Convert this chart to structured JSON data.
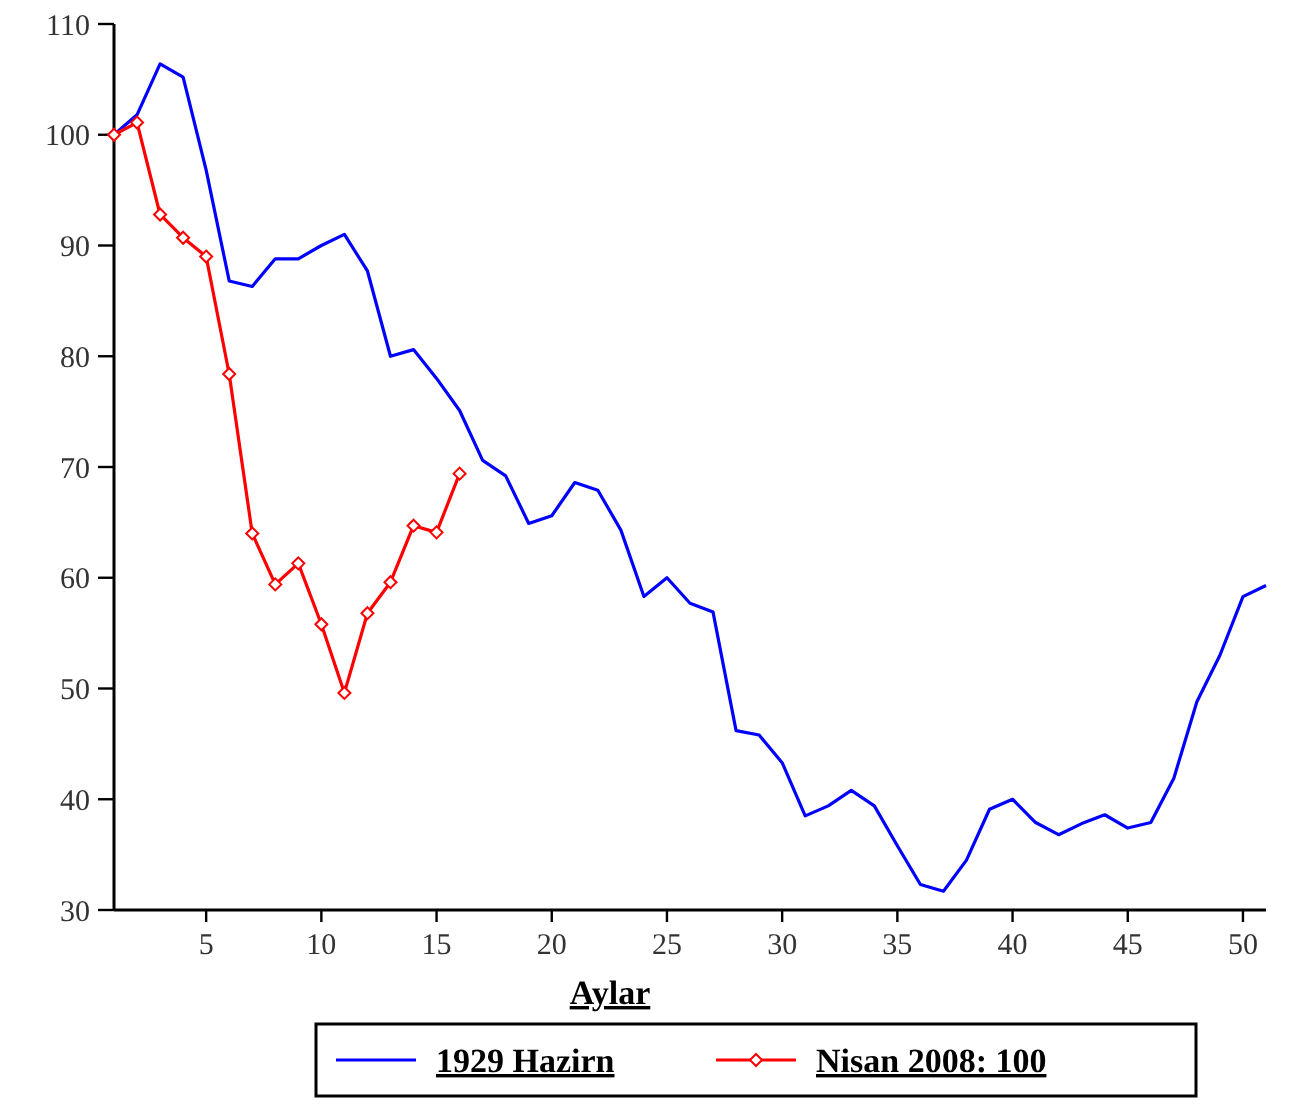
{
  "chart_data": {
    "type": "line",
    "xlabel": "Aylar",
    "x": [
      1,
      2,
      3,
      4,
      5,
      6,
      7,
      8,
      9,
      10,
      11,
      12,
      13,
      14,
      15,
      16,
      17,
      18,
      19,
      20,
      21,
      22,
      23,
      24,
      25,
      26,
      27,
      28,
      29,
      30,
      31,
      32,
      33,
      34,
      35,
      36,
      37,
      38,
      39,
      40,
      41,
      42,
      43,
      44,
      45,
      46,
      47,
      48,
      49,
      50,
      51
    ],
    "xlim": [
      1,
      51
    ],
    "xticks": [
      5,
      10,
      15,
      20,
      25,
      30,
      35,
      40,
      45,
      50
    ],
    "ylim": [
      30,
      110
    ],
    "yticks": [
      30,
      40,
      50,
      60,
      70,
      80,
      90,
      100,
      110
    ],
    "grid": false,
    "legend": "bottom",
    "series": [
      {
        "name": "1929 Hazirn",
        "color": "#0000ff",
        "marker": "none",
        "values": [
          100,
          101.8,
          106.4,
          105.2,
          96.8,
          86.8,
          86.3,
          88.8,
          88.8,
          90,
          91,
          87.7,
          80,
          80.6,
          78,
          75.1,
          70.6,
          69.2,
          64.9,
          65.6,
          68.6,
          67.9,
          64.3,
          58.3,
          60,
          57.7,
          56.9,
          46.2,
          45.8,
          43.3,
          38.5,
          39.4,
          40.8,
          39.4,
          35.8,
          32.3,
          31.7,
          34.5,
          39.1,
          40,
          37.9,
          36.8,
          37.8,
          38.6,
          37.4,
          37.9,
          41.9,
          48.8,
          53,
          58.3,
          59.3
        ]
      },
      {
        "name": "Nisan 2008: 100",
        "color": "#ff0000",
        "marker": "diamond",
        "x": [
          1,
          2,
          3,
          4,
          5,
          6,
          7,
          8,
          9,
          10,
          11,
          12,
          13,
          14,
          15,
          16
        ],
        "values": [
          100,
          101.1,
          92.8,
          90.7,
          89,
          78.4,
          64,
          59.4,
          61.3,
          55.8,
          49.6,
          56.8,
          59.6,
          64.7,
          64.1,
          69.4
        ]
      }
    ]
  }
}
